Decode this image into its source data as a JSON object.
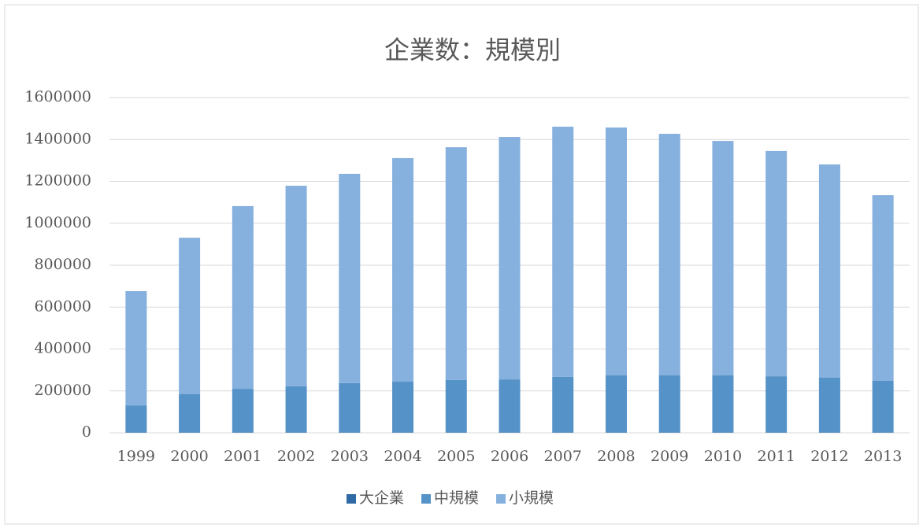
{
  "chart_data": {
    "type": "stacked_bar",
    "title": "企業数：規模別",
    "categories": [
      "1999",
      "2000",
      "2001",
      "2002",
      "2003",
      "2004",
      "2005",
      "2006",
      "2007",
      "2008",
      "2009",
      "2010",
      "2011",
      "2012",
      "2013"
    ],
    "series": [
      {
        "name": "大企業",
        "color": "#2f6aa6",
        "values": [
          1000,
          1000,
          1000,
          1000,
          1000,
          1000,
          1000,
          1000,
          1000,
          1000,
          1000,
          1000,
          1000,
          1000,
          1000
        ]
      },
      {
        "name": "中規模",
        "color": "#5592c8",
        "values": [
          130000,
          183000,
          209000,
          221000,
          236000,
          243000,
          251000,
          254000,
          266000,
          273000,
          273000,
          273000,
          269000,
          262000,
          247000
        ]
      },
      {
        "name": "小規模",
        "color": "#86b0dd",
        "values": [
          545000,
          747000,
          872000,
          957000,
          999000,
          1067000,
          1111000,
          1157000,
          1194000,
          1183000,
          1153000,
          1119000,
          1075000,
          1018000,
          886000
        ]
      }
    ],
    "ylim": [
      0,
      1600000
    ],
    "yticks": [
      0,
      200000,
      400000,
      600000,
      800000,
      1000000,
      1200000,
      1400000,
      1600000
    ],
    "grid": true,
    "legend": "bottom"
  }
}
